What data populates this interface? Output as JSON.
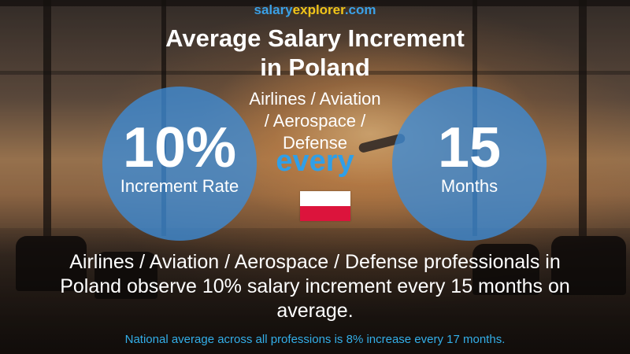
{
  "site": {
    "part1": "salary",
    "part2": "explorer",
    "part3": ".com"
  },
  "title": {
    "line1": "Average Salary Increment",
    "line2": "in Poland"
  },
  "category": {
    "line1": "Airlines / Aviation",
    "line2": "/ Aerospace /",
    "line3": "Defense"
  },
  "increment": {
    "value": "10%",
    "label": "Increment Rate"
  },
  "connector": "every",
  "period": {
    "value": "15",
    "label": "Months"
  },
  "flag": {
    "name": "poland-flag-icon",
    "colors": [
      "#ffffff",
      "#dc143c"
    ]
  },
  "summary": {
    "line1": "Airlines / Aviation / Aerospace / Defense professionals in",
    "line2": "Poland observe 10% salary increment every 15 months on",
    "line3": "average."
  },
  "footnote": "National average across all professions is 8% increase every 17 months.",
  "colors": {
    "accent": "#3aa0e6",
    "logo_yellow": "#f0c419",
    "circle": "#3c8cd7"
  }
}
